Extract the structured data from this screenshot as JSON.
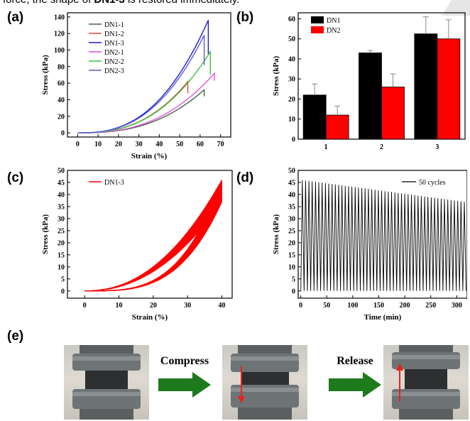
{
  "caption": {
    "pre": "force, the shape of ",
    "bold": "DN1-3",
    "post": " is restored immediately."
  },
  "panel_labels": {
    "a": "(a)",
    "b": "(b)",
    "c": "(c)",
    "d": "(d)",
    "e": "(e)"
  },
  "colors": {
    "DN1-1": "#3a6b3f",
    "DN1-2": "#e04a3a",
    "DN1-3": "#1b1bd6",
    "DN2-1": "#e64fe0",
    "DN2-2": "#3fbf3f",
    "DN2-3": "#5a5ad8",
    "DN1": "#000000",
    "DN2": "#ff0000",
    "cycle_red": "#ff0000",
    "arrow_green": "#1d7a1d"
  },
  "chart_data": [
    {
      "id": "a",
      "type": "line",
      "xlabel": "Strain (%)",
      "ylabel": "Stress (kPa)",
      "xlim": [
        -5,
        75
      ],
      "ylim": [
        -5,
        145
      ],
      "xticks": [
        0,
        10,
        20,
        30,
        40,
        50,
        60,
        70
      ],
      "yticks": [
        0,
        20,
        40,
        60,
        80,
        100,
        120,
        140
      ],
      "legend_position": "top-left",
      "series": [
        {
          "name": "DN1-1",
          "max_strain": 62,
          "max_stress": 52,
          "drop_to": 44
        },
        {
          "name": "DN1-2",
          "max_strain": 54,
          "max_stress": 62,
          "drop_to": 48
        },
        {
          "name": "DN1-3",
          "max_strain": 64,
          "max_stress": 136,
          "drop_to": 95
        },
        {
          "name": "DN2-1",
          "max_strain": 67,
          "max_stress": 72,
          "drop_to": 63
        },
        {
          "name": "DN2-2",
          "max_strain": 65,
          "max_stress": 98,
          "drop_to": 70
        },
        {
          "name": "DN2-3",
          "max_strain": 62,
          "max_stress": 118,
          "drop_to": 82
        }
      ]
    },
    {
      "id": "b",
      "type": "bar",
      "ylabel": "Stress (kPa)",
      "categories": [
        "1",
        "2",
        "3"
      ],
      "ylim": [
        0,
        63
      ],
      "yticks": [
        0,
        10,
        20,
        30,
        40,
        50,
        60
      ],
      "legend_position": "top-left",
      "series": [
        {
          "name": "DN1",
          "values": [
            22,
            43,
            52.5
          ],
          "errors": [
            5.5,
            1.2,
            8.5
          ]
        },
        {
          "name": "DN2",
          "values": [
            12,
            26,
            50
          ],
          "errors": [
            4.5,
            6.5,
            9.5
          ]
        }
      ]
    },
    {
      "id": "c",
      "type": "line",
      "xlabel": "Strain (%)",
      "ylabel": "Stress (kPa)",
      "xlim": [
        -5,
        43
      ],
      "ylim": [
        -3,
        50
      ],
      "xticks": [
        0,
        10,
        20,
        30,
        40
      ],
      "yticks": [
        0,
        5,
        10,
        15,
        20,
        25,
        30,
        35,
        40,
        45,
        50
      ],
      "legend_position": "top-left",
      "series": [
        {
          "name": "DN1-3",
          "cycles": 50,
          "max_strain": 40,
          "max_stress_first": 46,
          "max_stress_last": 37
        }
      ]
    },
    {
      "id": "d",
      "type": "line",
      "xlabel": "Time (min)",
      "ylabel": "Stress (kPa)",
      "xlim": [
        -5,
        320
      ],
      "ylim": [
        -3,
        50
      ],
      "xticks": [
        0,
        50,
        100,
        150,
        200,
        250,
        300
      ],
      "yticks": [
        0,
        5,
        10,
        15,
        20,
        25,
        30,
        35,
        40,
        45,
        50
      ],
      "legend_position": "top-right",
      "series": [
        {
          "name": "50 cycles",
          "cycles": 50,
          "peak_first": 46,
          "peak_last": 37,
          "t_end": 318
        }
      ]
    }
  ],
  "photos": {
    "arrow1_label": "Compress",
    "arrow2_label": "Release"
  }
}
